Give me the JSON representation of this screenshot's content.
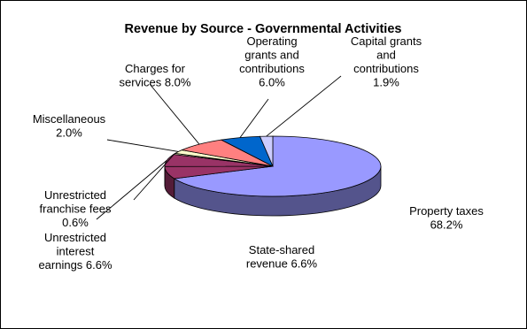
{
  "chart_data": {
    "type": "pie",
    "variant": "3d",
    "title": "Revenue by Source - Governmental Activities",
    "legend": "none",
    "slices": [
      {
        "name": "Property taxes",
        "value": 68.2,
        "color": "#9999FF",
        "label_lines": [
          "Property taxes",
          "68.2%"
        ]
      },
      {
        "name": "State-shared revenue",
        "value": 6.6,
        "color": "#993366",
        "label_lines": [
          "State-shared",
          "revenue 6.6%"
        ]
      },
      {
        "name": "Unrestricted interest earnings",
        "value": 6.6,
        "color": "#993366",
        "label_lines": [
          "Unrestricted",
          "interest",
          "earnings 6.6%"
        ]
      },
      {
        "name": "Unrestricted franchise fees",
        "value": 0.6,
        "color": "#FFFFCC",
        "label_lines": [
          "Unrestricted",
          "franchise fees",
          "0.6%"
        ]
      },
      {
        "name": "Miscellaneous",
        "value": 2.0,
        "color": "#FFFFCC",
        "label_lines": [
          "Miscellaneous",
          "2.0%"
        ]
      },
      {
        "name": "Charges for services",
        "value": 8.0,
        "color": "#FF8080",
        "label_lines": [
          "Charges for",
          "services 8.0%"
        ]
      },
      {
        "name": "Operating grants and contributions",
        "value": 6.0,
        "color": "#0066CC",
        "label_lines": [
          "Operating",
          "grants and",
          "contributions",
          "6.0%"
        ]
      },
      {
        "name": "Capital grants and contributions",
        "value": 1.9,
        "color": "#CCCCFF",
        "label_lines": [
          "Capital grants",
          "and",
          "contributions",
          "1.9%"
        ]
      }
    ]
  }
}
